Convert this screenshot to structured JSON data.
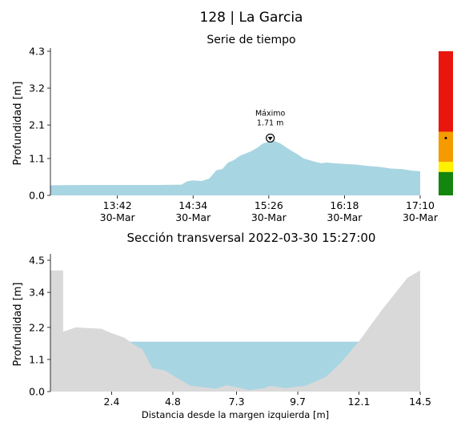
{
  "station_title": "128 | La Garcia",
  "chart_data": [
    {
      "type": "area",
      "title": "Serie de tiempo",
      "xlabel": "",
      "ylabel": "Profundidad [m]",
      "ylim": [
        0,
        4.3
      ],
      "yticks": [
        "0.0",
        "1.1",
        "2.1",
        "3.2",
        "4.3"
      ],
      "xlim": [
        "2022-03-30 12:56",
        "2022-03-30 17:10"
      ],
      "xticks": [
        {
          "x": "2022-03-30 13:42",
          "time": "13:42",
          "date": "30-Mar"
        },
        {
          "x": "2022-03-30 14:34",
          "time": "14:34",
          "date": "30-Mar"
        },
        {
          "x": "2022-03-30 15:26",
          "time": "15:26",
          "date": "30-Mar"
        },
        {
          "x": "2022-03-30 16:18",
          "time": "16:18",
          "date": "30-Mar"
        },
        {
          "x": "2022-03-30 17:10",
          "time": "17:10",
          "date": "30-Mar"
        }
      ],
      "series": [
        {
          "color": "#a8d5e2",
          "points": [
            [
              "2022-03-30 12:56",
              0.3
            ],
            [
              "2022-03-30 13:20",
              0.31
            ],
            [
              "2022-03-30 13:42",
              0.31
            ],
            [
              "2022-03-30 14:10",
              0.31
            ],
            [
              "2022-03-30 14:26",
              0.32
            ],
            [
              "2022-03-30 14:30",
              0.42
            ],
            [
              "2022-03-30 14:34",
              0.45
            ],
            [
              "2022-03-30 14:40",
              0.43
            ],
            [
              "2022-03-30 14:45",
              0.5
            ],
            [
              "2022-03-30 14:50",
              0.75
            ],
            [
              "2022-03-30 14:54",
              0.78
            ],
            [
              "2022-03-30 14:58",
              0.98
            ],
            [
              "2022-03-30 15:02",
              1.05
            ],
            [
              "2022-03-30 15:06",
              1.18
            ],
            [
              "2022-03-30 15:10",
              1.25
            ],
            [
              "2022-03-30 15:14",
              1.32
            ],
            [
              "2022-03-30 15:18",
              1.42
            ],
            [
              "2022-03-30 15:22",
              1.55
            ],
            [
              "2022-03-30 15:26",
              1.6
            ],
            [
              "2022-03-30 15:27",
              1.71
            ],
            [
              "2022-03-30 15:30",
              1.62
            ],
            [
              "2022-03-30 15:34",
              1.55
            ],
            [
              "2022-03-30 15:38",
              1.43
            ],
            [
              "2022-03-30 15:42",
              1.32
            ],
            [
              "2022-03-30 15:46",
              1.22
            ],
            [
              "2022-03-30 15:50",
              1.1
            ],
            [
              "2022-03-30 15:54",
              1.05
            ],
            [
              "2022-03-30 15:58",
              1.0
            ],
            [
              "2022-03-30 16:02",
              0.96
            ],
            [
              "2022-03-30 16:06",
              0.98
            ],
            [
              "2022-03-30 16:10",
              0.96
            ],
            [
              "2022-03-30 16:18",
              0.94
            ],
            [
              "2022-03-30 16:26",
              0.92
            ],
            [
              "2022-03-30 16:34",
              0.88
            ],
            [
              "2022-03-30 16:42",
              0.85
            ],
            [
              "2022-03-30 16:50",
              0.8
            ],
            [
              "2022-03-30 16:58",
              0.78
            ],
            [
              "2022-03-30 17:04",
              0.74
            ],
            [
              "2022-03-30 17:10",
              0.72
            ]
          ]
        }
      ],
      "annotation": {
        "label": "Máximo",
        "value": "1.71 m",
        "x": "2022-03-30 15:27",
        "y": 1.71
      },
      "grid": false,
      "alert_bar": {
        "colors": [
          "#e8160c",
          "#f59b00",
          "#fff200",
          "#14850f"
        ],
        "thresholds": [
          0,
          0.7,
          1.0,
          1.9,
          4.3
        ],
        "marker_y": 1.71
      }
    },
    {
      "type": "area",
      "title": "Sección transversal 2022-03-30 15:27:00",
      "xlabel": "Distancia desde la margen izquierda [m]",
      "ylabel": "Profundidad [m]",
      "xlim": [
        0,
        14.5
      ],
      "ylim": [
        0,
        4.5
      ],
      "xticks": [
        "2.4",
        "4.8",
        "7.3",
        "9.7",
        "12.1",
        "14.5"
      ],
      "yticks": [
        "0.0",
        "1.1",
        "2.2",
        "3.4",
        "4.5"
      ],
      "water_level": 1.71,
      "water_color": "#a8d5e2",
      "terrain_color": "#d9d9d9",
      "terrain_profile": [
        [
          0,
          4.15
        ],
        [
          0.5,
          4.15
        ],
        [
          0.5,
          2.05
        ],
        [
          1.0,
          2.2
        ],
        [
          2.0,
          2.15
        ],
        [
          2.4,
          2.0
        ],
        [
          2.9,
          1.85
        ],
        [
          3.3,
          1.6
        ],
        [
          3.6,
          1.45
        ],
        [
          4.0,
          0.8
        ],
        [
          4.5,
          0.72
        ],
        [
          5.0,
          0.45
        ],
        [
          5.5,
          0.2
        ],
        [
          6.5,
          0.1
        ],
        [
          6.9,
          0.22
        ],
        [
          7.3,
          0.15
        ],
        [
          7.8,
          0.05
        ],
        [
          8.4,
          0.12
        ],
        [
          8.6,
          0.2
        ],
        [
          9.2,
          0.12
        ],
        [
          10.0,
          0.2
        ],
        [
          10.8,
          0.5
        ],
        [
          11.4,
          1.0
        ],
        [
          12.1,
          1.72
        ],
        [
          13.0,
          2.8
        ],
        [
          14.0,
          3.9
        ],
        [
          14.5,
          4.15
        ]
      ],
      "grid": false
    }
  ]
}
